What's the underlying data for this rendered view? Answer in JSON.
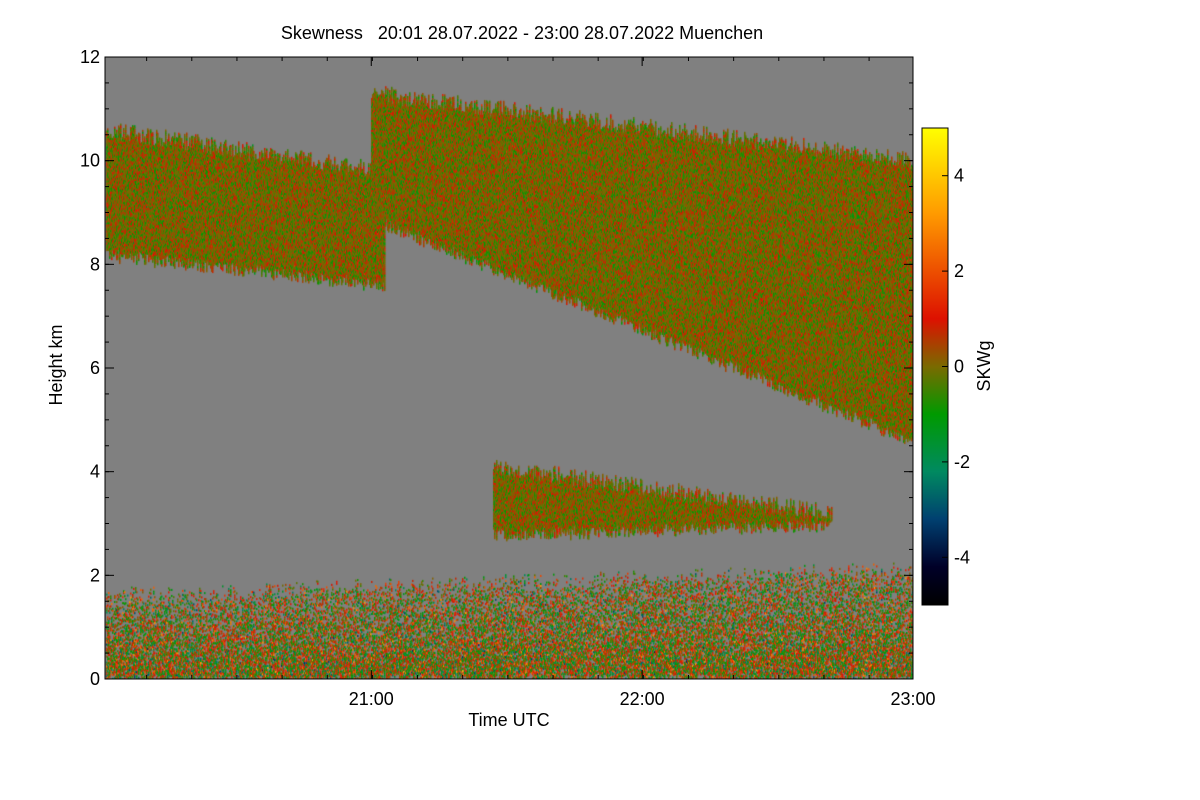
{
  "chart_data": {
    "type": "heatmap",
    "title": "Skewness   20:01 28.07.2022 - 23:00 28.07.2022 Muenchen",
    "xlabel": "Time UTC",
    "ylabel": "Height km",
    "xlim_hours": [
      20.017,
      23.0
    ],
    "ylim_km": [
      0,
      12
    ],
    "x_ticks": [
      {
        "hour": 21.0,
        "label": "21:00"
      },
      {
        "hour": 22.0,
        "label": "22:00"
      },
      {
        "hour": 23.0,
        "label": "23:00"
      }
    ],
    "x_minor_step_hours": 0.1667,
    "y_ticks": [
      {
        "value": 0,
        "label": "0"
      },
      {
        "value": 2,
        "label": "2"
      },
      {
        "value": 4,
        "label": "4"
      },
      {
        "value": 6,
        "label": "6"
      },
      {
        "value": 8,
        "label": "8"
      },
      {
        "value": 10,
        "label": "10"
      },
      {
        "value": 12,
        "label": "12"
      }
    ],
    "y_minor_step_km": 0.5,
    "background_color": "#808080",
    "colorbar": {
      "label": "SKWg",
      "range": [
        -5,
        5
      ],
      "ticks": [
        {
          "value": 4,
          "label": "4"
        },
        {
          "value": 2,
          "label": "2"
        },
        {
          "value": 0,
          "label": "0"
        },
        {
          "value": -2,
          "label": "-2"
        },
        {
          "value": -4,
          "label": "-4"
        }
      ],
      "stops": [
        {
          "value": 5,
          "color": "#ffff00"
        },
        {
          "value": 3.2,
          "color": "#ff9a00"
        },
        {
          "value": 1,
          "color": "#dd1100"
        },
        {
          "value": 0,
          "color": "#7a6a00"
        },
        {
          "value": -1,
          "color": "#009a00"
        },
        {
          "value": -2.2,
          "color": "#008a60"
        },
        {
          "value": -3.2,
          "color": "#004070"
        },
        {
          "value": -4.2,
          "color": "#000028"
        },
        {
          "value": -5,
          "color": "#000000"
        }
      ]
    },
    "features": [
      {
        "name": "upper cloud layer (early)",
        "hours": [
          20.02,
          21.05
        ],
        "base_km": [
          8.2,
          7.6
        ],
        "top_km": [
          10.6,
          9.8
        ]
      },
      {
        "name": "main cirrus deck",
        "hours": [
          21.0,
          23.0
        ],
        "base_km": [
          8.9,
          4.6
        ],
        "top_km": [
          11.3,
          10.0
        ]
      },
      {
        "name": "mid-level patches",
        "hours": [
          21.45,
          22.7
        ],
        "base_km": [
          2.8,
          3.0
        ],
        "top_km": [
          4.1,
          3.2
        ]
      },
      {
        "name": "boundary layer",
        "hours": [
          20.02,
          23.0
        ],
        "base_km": [
          0.0,
          0.0
        ],
        "top_km": [
          1.6,
          2.1
        ]
      }
    ]
  }
}
